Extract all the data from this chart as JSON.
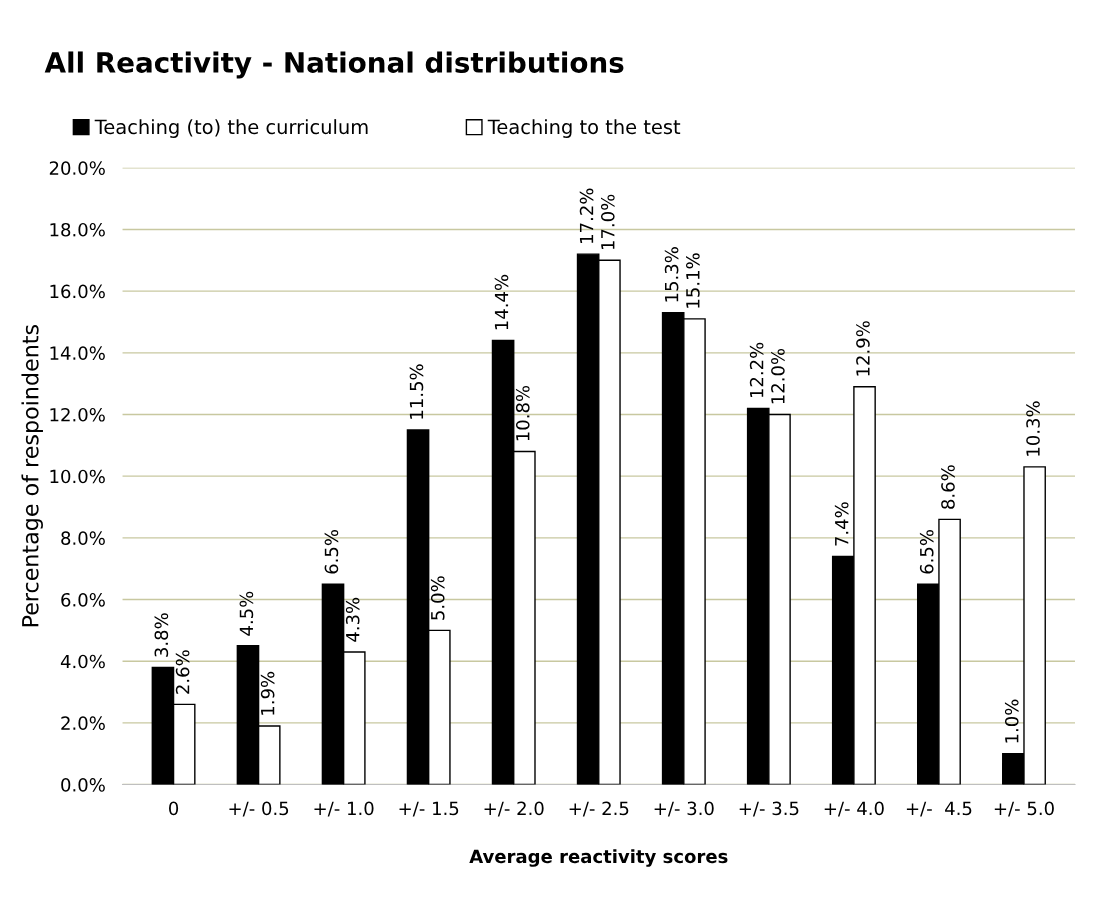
{
  "chart_data": {
    "type": "bar",
    "title": "All Reactivity - National distributions",
    "xlabel": "Average reactivity scores",
    "ylabel": "Percentage of respoindents",
    "categories": [
      "0",
      "+/- 0.5",
      "+/- 1.0",
      "+/- 1.5",
      "+/- 2.0",
      "+/- 2.5",
      "+/- 3.0",
      "+/- 3.5",
      "+/- 4.0",
      "+/-  4.5",
      "+/- 5.0"
    ],
    "series": [
      {
        "name": "Teaching (to) the curriculum",
        "color": "#000000",
        "values": [
          3.8,
          4.5,
          6.5,
          11.5,
          14.4,
          17.2,
          15.3,
          12.2,
          7.4,
          6.5,
          1.0
        ],
        "value_labels": [
          "3.8%",
          "4.5%",
          "6.5%",
          "11.5%",
          "14.4%",
          "17.2%",
          "15.3%",
          "12.2%",
          "7.4%",
          "6.5%",
          "1.0%"
        ]
      },
      {
        "name": "Teaching to the test",
        "color": "#ffffff",
        "values": [
          2.6,
          1.9,
          4.3,
          5.0,
          10.8,
          17.0,
          15.1,
          12.0,
          12.9,
          8.6,
          10.3
        ],
        "value_labels": [
          "2.6%",
          "1.9%",
          "4.3%",
          "5.0%",
          "10.8%",
          "17.0%",
          "15.1%",
          "12.0%",
          "12.9%",
          "8.6%",
          "10.3%"
        ]
      }
    ],
    "ylim": [
      0,
      20
    ],
    "yticks": [
      {
        "value": 0,
        "label": "0.0%"
      },
      {
        "value": 2,
        "label": "2.0%"
      },
      {
        "value": 4,
        "label": "4.0%"
      },
      {
        "value": 6,
        "label": "6.0%"
      },
      {
        "value": 8,
        "label": "8.0%"
      },
      {
        "value": 10,
        "label": "10.0%"
      },
      {
        "value": 12,
        "label": "12.0%"
      },
      {
        "value": 14,
        "label": "14.0%"
      },
      {
        "value": 16,
        "label": "16.0%"
      },
      {
        "value": 18,
        "label": "18.0%"
      },
      {
        "value": 20,
        "label": "20.0%"
      }
    ],
    "grid": "y",
    "legend": "top left"
  }
}
